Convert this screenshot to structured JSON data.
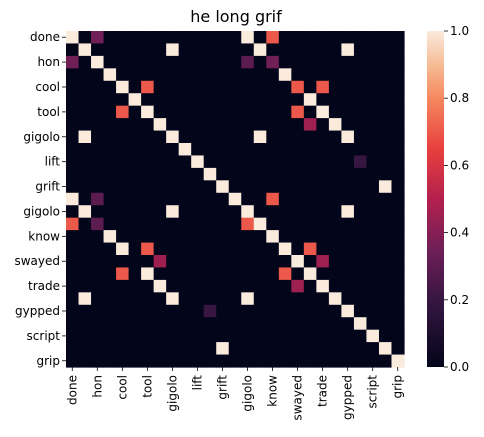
{
  "chart_data": {
    "type": "heatmap",
    "title": "he long grif",
    "labels": [
      "done",
      "",
      "hon",
      "",
      "cool",
      "",
      "tool",
      "",
      "gigolo",
      "",
      "lift",
      "",
      "grift",
      "",
      "gigolo",
      "",
      "know",
      "",
      "swayed",
      "",
      "trade",
      "",
      "gypped",
      "",
      "script",
      "",
      "grip"
    ],
    "colorbar": {
      "min": 0.0,
      "max": 1.0,
      "ticks": [
        "0.0",
        "0.2",
        "0.4",
        "0.6",
        "0.8",
        "1.0"
      ],
      "colormap": "rocket"
    },
    "matrix": [
      [
        1,
        0,
        0.35,
        0,
        0,
        0,
        0,
        0,
        0,
        0,
        0,
        0,
        0,
        0,
        1,
        0,
        0.7,
        0,
        0,
        0,
        0,
        0,
        0,
        0,
        0,
        0,
        0
      ],
      [
        0,
        1,
        0,
        0,
        0,
        0,
        0,
        0,
        1,
        0,
        0,
        0,
        0,
        0,
        0,
        1,
        0,
        0,
        0,
        0,
        0,
        0,
        1,
        0,
        0,
        0,
        0
      ],
      [
        0.35,
        0,
        1,
        0,
        0,
        0,
        0,
        0,
        0,
        0,
        0,
        0,
        0,
        0,
        0.3,
        0,
        0.35,
        0,
        0,
        0,
        0,
        0,
        0,
        0,
        0,
        0,
        0
      ],
      [
        0,
        0,
        0,
        1,
        0,
        0,
        0,
        0,
        0,
        0,
        0,
        0,
        0,
        0,
        0,
        0,
        0,
        1,
        0,
        0,
        0,
        0,
        0,
        0,
        0,
        0,
        0
      ],
      [
        0,
        0,
        0,
        0,
        1,
        0,
        0.7,
        0,
        0,
        0,
        0,
        0,
        0,
        0,
        0,
        0,
        0,
        0,
        0.7,
        0,
        0.7,
        0,
        0,
        0,
        0,
        0,
        0
      ],
      [
        0,
        0,
        0,
        0,
        0,
        1,
        0,
        0,
        0,
        0,
        0,
        0,
        0,
        0,
        0,
        0,
        0,
        0,
        0,
        1,
        0,
        0,
        0,
        0,
        0,
        0,
        0
      ],
      [
        0,
        0,
        0,
        0,
        0.7,
        0,
        1,
        0,
        0,
        0,
        0,
        0,
        0,
        0,
        0,
        0,
        0,
        0,
        0.7,
        0,
        1,
        0,
        0,
        0,
        0,
        0,
        0
      ],
      [
        0,
        0,
        0,
        0,
        0,
        0,
        0,
        1,
        0,
        0,
        0,
        0,
        0,
        0,
        0,
        0,
        0,
        0,
        0,
        0.45,
        0,
        1,
        0,
        0,
        0,
        0,
        0
      ],
      [
        0,
        1,
        0,
        0,
        0,
        0,
        0,
        0,
        1,
        0,
        0,
        0,
        0,
        0,
        0,
        1,
        0,
        0,
        0,
        0,
        0,
        0,
        1,
        0,
        0,
        0,
        0
      ],
      [
        0,
        0,
        0,
        0,
        0,
        0,
        0,
        0,
        0,
        1,
        0,
        0,
        0,
        0,
        0,
        0,
        0,
        0,
        0,
        0,
        0,
        0,
        0,
        0,
        0,
        0,
        0
      ],
      [
        0,
        0,
        0,
        0,
        0,
        0,
        0,
        0,
        0,
        0,
        1,
        0,
        0,
        0,
        0,
        0,
        0,
        0,
        0,
        0,
        0,
        0,
        0,
        0.2,
        0,
        0,
        0
      ],
      [
        0,
        0,
        0,
        0,
        0,
        0,
        0,
        0,
        0,
        0,
        0,
        1,
        0,
        0,
        0,
        0,
        0,
        0,
        0,
        0,
        0,
        0,
        0,
        0,
        0,
        0,
        0
      ],
      [
        0,
        0,
        0,
        0,
        0,
        0,
        0,
        0,
        0,
        0,
        0,
        0,
        1,
        0,
        0,
        0,
        0,
        0,
        0,
        0,
        0,
        0,
        0,
        0,
        0,
        1,
        0
      ],
      [
        1,
        0,
        0.3,
        0,
        0,
        0,
        0,
        0,
        0,
        0,
        0,
        0,
        0,
        1,
        0,
        0,
        0.7,
        0,
        0,
        0,
        0,
        0,
        0,
        0,
        0,
        0,
        0
      ],
      [
        0,
        1,
        0,
        0,
        0,
        0,
        0,
        0,
        1,
        0,
        0,
        0,
        0,
        0,
        1,
        0,
        0,
        0,
        0,
        0,
        0,
        0,
        1,
        0,
        0,
        0,
        0
      ],
      [
        0.7,
        0,
        0.3,
        0,
        0,
        0,
        0,
        0,
        0,
        0,
        0,
        0,
        0,
        0,
        0.7,
        1,
        0,
        0,
        0,
        0,
        0,
        0,
        0,
        0,
        0,
        0,
        0
      ],
      [
        0,
        0,
        0,
        1,
        0,
        0,
        0,
        0,
        0,
        0,
        0,
        0,
        0,
        0,
        0,
        0,
        1,
        0,
        0,
        0,
        0,
        0,
        0,
        0,
        0,
        0,
        0
      ],
      [
        0,
        0,
        0,
        0,
        1,
        0,
        0.7,
        0,
        0,
        0,
        0,
        0,
        0,
        0,
        0,
        0,
        0,
        1,
        0,
        0.7,
        0,
        0,
        0,
        0,
        0,
        0,
        0
      ],
      [
        0,
        0,
        0,
        0,
        0,
        0,
        0,
        0.45,
        0,
        0,
        0,
        0,
        0,
        0,
        0,
        0,
        0,
        0,
        1,
        0,
        0.45,
        0,
        0,
        0,
        0,
        0,
        0
      ],
      [
        0,
        0,
        0,
        0,
        0.7,
        0,
        1,
        0,
        0,
        0,
        0,
        0,
        0,
        0,
        0,
        0,
        0,
        0.7,
        0,
        1,
        0,
        0,
        0,
        0,
        0,
        0,
        0
      ],
      [
        0,
        0,
        0,
        0,
        0,
        0,
        0,
        1,
        0,
        0,
        0,
        0,
        0,
        0,
        0,
        0,
        0,
        0,
        0.45,
        0,
        1,
        0,
        0,
        0,
        0,
        0,
        0
      ],
      [
        0,
        1,
        0,
        0,
        0,
        0,
        0,
        0,
        1,
        0,
        0,
        0,
        0,
        0,
        1,
        0,
        0,
        0,
        0,
        0,
        0,
        1,
        0,
        0,
        0,
        0,
        0
      ],
      [
        0,
        0,
        0,
        0,
        0,
        0,
        0,
        0,
        0,
        0,
        0,
        0.2,
        0,
        0,
        0,
        0,
        0,
        0,
        0,
        0,
        0,
        0,
        1,
        0,
        0,
        0,
        0
      ],
      [
        0,
        0,
        0,
        0,
        0,
        0,
        0,
        0,
        0,
        0,
        0,
        0,
        0,
        0,
        0,
        0,
        0,
        0,
        0,
        0,
        0,
        0,
        0,
        1,
        0,
        0,
        0
      ],
      [
        0,
        0,
        0,
        0,
        0,
        0,
        0,
        0,
        0,
        0,
        0,
        0,
        0,
        0,
        0,
        0,
        0,
        0,
        0,
        0,
        0,
        0,
        0,
        0,
        1,
        0,
        0
      ],
      [
        0,
        0,
        0,
        0,
        0,
        0,
        0,
        0,
        0,
        0,
        0,
        0,
        1,
        0,
        0,
        0,
        0,
        0,
        0,
        0,
        0,
        0,
        0,
        0,
        0,
        1,
        0
      ],
      [
        0,
        0,
        0,
        0,
        0,
        0,
        0,
        0,
        0,
        0,
        0,
        0,
        0,
        0,
        0,
        0,
        0,
        0,
        0,
        0,
        0,
        0,
        0,
        0,
        0,
        0,
        1
      ]
    ]
  }
}
